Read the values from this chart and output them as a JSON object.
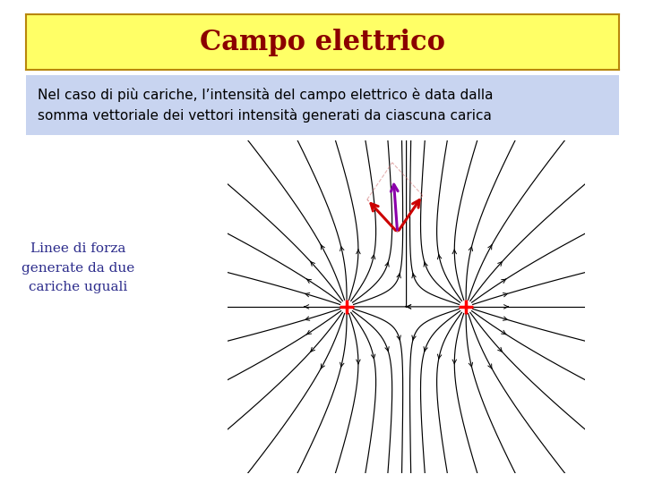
{
  "title": "Campo elettrico",
  "title_bg": "#ffff66",
  "title_border": "#b8860b",
  "title_color": "#8b0000",
  "title_fontsize": 22,
  "subtitle": "Nel caso di più cariche, l’intensità del campo elettrico è data dalla\nsomma vettoriale dei vettori intensità generati da ciascuna carica",
  "subtitle_bg": "#c8d4f0",
  "subtitle_color": "#000000",
  "subtitle_fontsize": 11,
  "side_text": "Linee di forza\ngenerate da due\ncariche uguali",
  "side_text_color": "#2b2b8b",
  "side_text_fontsize": 11,
  "charge1": [
    -1.0,
    0.0
  ],
  "charge2": [
    1.0,
    0.0
  ],
  "charge_color": "#ff0000",
  "bg_color": "#ffffff",
  "field_line_color": "#000000",
  "arrow_red_color": "#cc0000",
  "arrow_purple_color": "#8b00aa",
  "dashed_color": "#cc6666",
  "n_field_lines": 20,
  "r0": 0.12,
  "xlim": [
    -3.0,
    3.0
  ],
  "ylim": [
    -2.8,
    2.8
  ]
}
